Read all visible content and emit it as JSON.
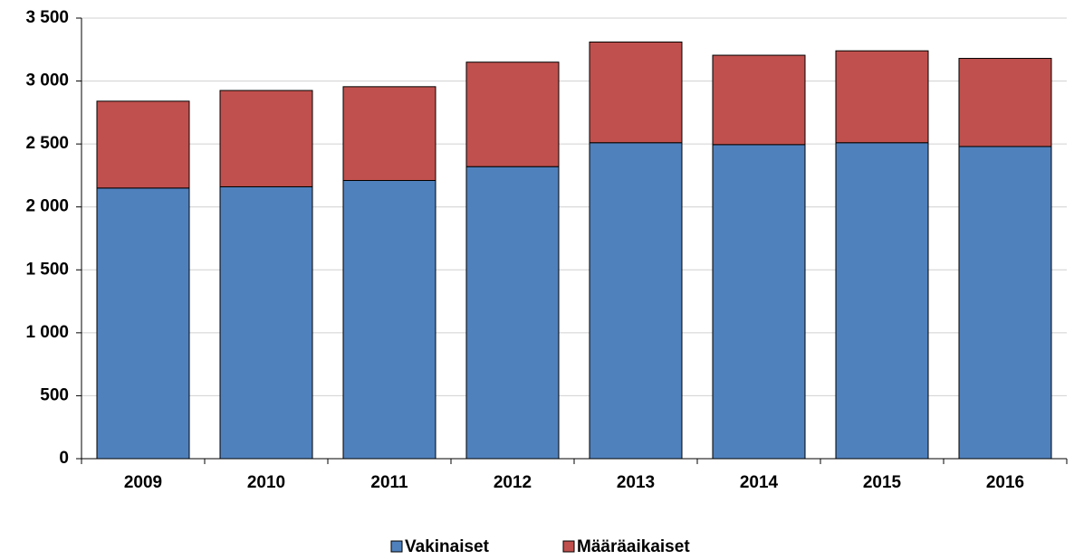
{
  "chart_data": {
    "type": "stacked_bar",
    "categories": [
      "2009",
      "2010",
      "2011",
      "2012",
      "2013",
      "2014",
      "2015",
      "2016"
    ],
    "series": [
      {
        "name": "Vakinaiset",
        "color": "#4f81bd",
        "values": [
          2150,
          2160,
          2210,
          2320,
          2510,
          2495,
          2510,
          2480
        ]
      },
      {
        "name": "Määräaikaiset",
        "color": "#c0504d",
        "values": [
          690,
          765,
          745,
          830,
          800,
          710,
          730,
          700
        ]
      }
    ],
    "ylim": [
      0,
      3500
    ],
    "yticks": [
      0,
      500,
      {
        "value": 1000,
        "label": "1 000"
      },
      {
        "value": 1500,
        "label": "1 500"
      },
      {
        "value": 2000,
        "label": "2 000"
      },
      {
        "value": 2500,
        "label": "2 500"
      },
      {
        "value": 3000,
        "label": "3 000"
      },
      {
        "value": 3500,
        "label": "3 500"
      }
    ],
    "grid": true,
    "legend": "bottom"
  }
}
